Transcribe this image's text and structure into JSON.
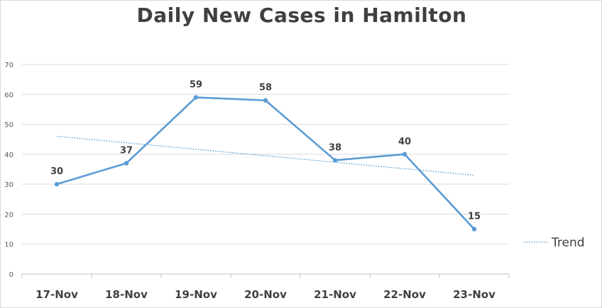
{
  "chart_data": {
    "type": "line",
    "title": "Daily New Cases in Hamilton",
    "categories": [
      "17-Nov",
      "18-Nov",
      "19-Nov",
      "20-Nov",
      "21-Nov",
      "22-Nov",
      "23-Nov"
    ],
    "series": [
      {
        "values": [
          30,
          37,
          59,
          58,
          38,
          40,
          15
        ],
        "color": "#5b9bd5"
      }
    ],
    "trendline": {
      "name": "Trend",
      "type": "linear",
      "start": 46,
      "end": 33,
      "style": "dotted",
      "color": "#4f97c9"
    },
    "yticks": [
      0,
      10,
      20,
      30,
      40,
      50,
      60,
      70
    ],
    "ylim": [
      0,
      70
    ],
    "xlabel": "",
    "ylabel": "",
    "grid": true,
    "legend": "right",
    "data_labels": true
  }
}
